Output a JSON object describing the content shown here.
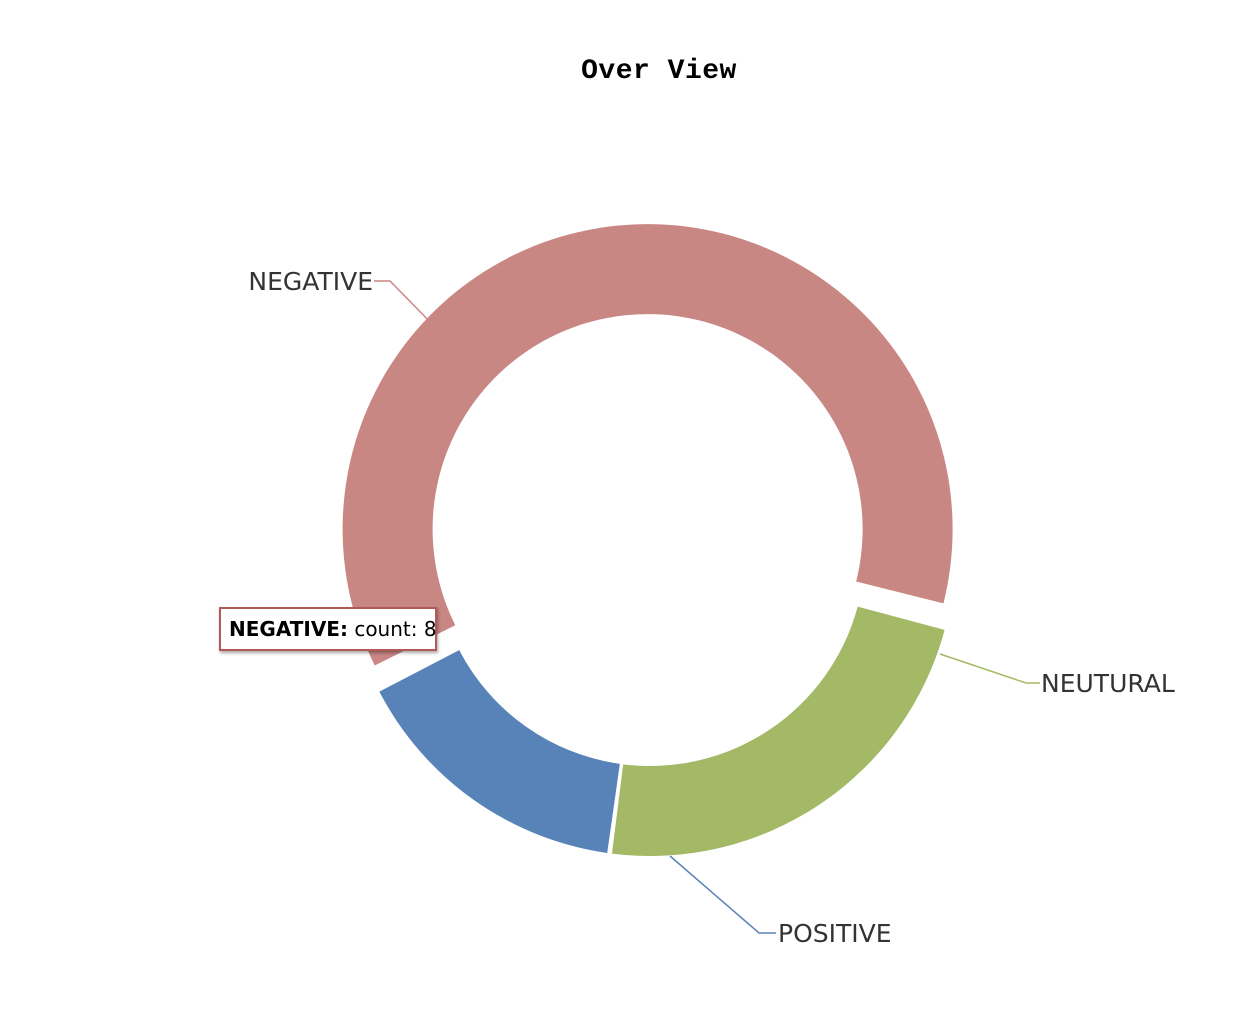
{
  "chart_data": {
    "type": "pie",
    "variant": "donut",
    "title": "Over View",
    "slices": [
      {
        "label": "NEGATIVE",
        "value": 8,
        "color": "#c98784"
      },
      {
        "label": "NEUTURAL",
        "value": 3,
        "color": "#a3b966"
      },
      {
        "label": "POSITIVE",
        "value": 2,
        "color": "#5883b8"
      }
    ],
    "exploded_slice": "NEGATIVE",
    "tooltip": {
      "label": "NEGATIVE:",
      "text": "count: 8"
    },
    "legend": "none"
  }
}
